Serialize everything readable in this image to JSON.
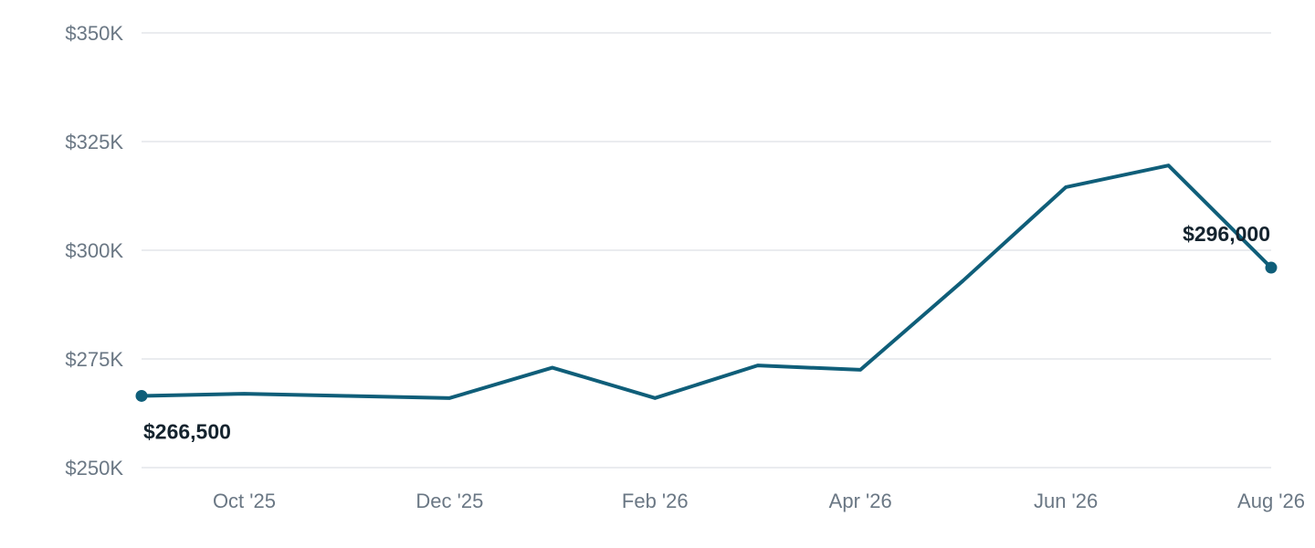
{
  "chart_data": {
    "type": "line",
    "title": "",
    "xlabel": "",
    "ylabel": "",
    "x": [
      "2025-09",
      "2025-10",
      "2025-11",
      "2025-12",
      "2026-01",
      "2026-02",
      "2026-03",
      "2026-04",
      "2026-05",
      "2026-06",
      "2026-07",
      "2026-08"
    ],
    "x_tick_labels": [
      {
        "x": "2025-10",
        "label": "Oct '25"
      },
      {
        "x": "2025-12",
        "label": "Dec '25"
      },
      {
        "x": "2026-02",
        "label": "Feb '26"
      },
      {
        "x": "2026-04",
        "label": "Apr '26"
      },
      {
        "x": "2026-06",
        "label": "Jun '26"
      },
      {
        "x": "2026-08",
        "label": "Aug '26"
      }
    ],
    "series": [
      {
        "values": [
          266500,
          267000,
          266500,
          266000,
          273000,
          266000,
          273500,
          272500,
          293000,
          314500,
          319500,
          296000
        ]
      }
    ],
    "ylim": [
      250000,
      350000
    ],
    "y_ticks": [
      {
        "value": 250000,
        "label": "$250K"
      },
      {
        "value": 275000,
        "label": "$275K"
      },
      {
        "value": 300000,
        "label": "$300K"
      },
      {
        "value": 325000,
        "label": "$325K"
      },
      {
        "value": 350000,
        "label": "$350K"
      }
    ],
    "annotations": {
      "start_label": "$266,500",
      "end_label": "$296,000"
    },
    "grid": true,
    "legend": "none",
    "colors": {
      "line": "#0f5e79",
      "grid": "#e3e6ea",
      "axis_text": "#6a7784",
      "annotation_text": "#14232e"
    }
  }
}
